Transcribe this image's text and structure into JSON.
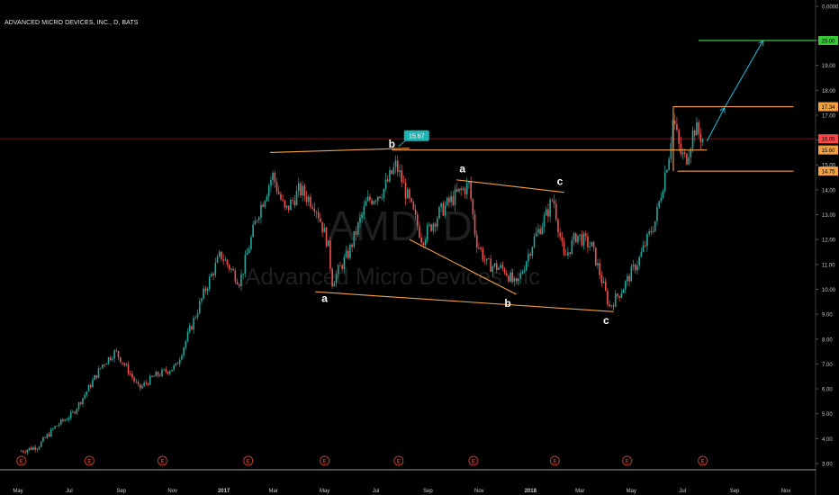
{
  "header": {
    "title": "ADVANCED MICRO DEVICES, INC., D, BATS"
  },
  "watermark": {
    "symbol": "AMD, D",
    "name": "Advanced Micro Devices Inc"
  },
  "chart_data": {
    "type": "candlestick",
    "title": "ADVANCED MICRO DEVICES, INC., D, BATS",
    "ylim": [
      2.7,
      21.5
    ],
    "yticks": [
      "0.0000",
      "20.00",
      "19.00",
      "18.00",
      "17.00",
      "16.00",
      "15.00",
      "14.00",
      "13.00",
      "12.00",
      "11.00",
      "10.00",
      "9.00",
      "8.00",
      "7.00",
      "6.00",
      "5.00",
      "4.00",
      "3.00"
    ],
    "xticks": [
      "May",
      "Jul",
      "Sep",
      "Nov",
      "2017",
      "Mar",
      "May",
      "Jul",
      "Sep",
      "Nov",
      "2018",
      "Mar",
      "May",
      "Jul",
      "Sep",
      "Nov"
    ],
    "price_path": [
      {
        "x": "2016-05-05",
        "y": 3.5
      },
      {
        "x": "2016-05-25",
        "y": 3.7
      },
      {
        "x": "2016-06-15",
        "y": 4.5
      },
      {
        "x": "2016-07-05",
        "y": 5.0
      },
      {
        "x": "2016-07-20",
        "y": 5.8
      },
      {
        "x": "2016-08-10",
        "y": 7.0
      },
      {
        "x": "2016-08-25",
        "y": 7.5
      },
      {
        "x": "2016-09-10",
        "y": 6.7
      },
      {
        "x": "2016-09-22",
        "y": 6.0
      },
      {
        "x": "2016-10-10",
        "y": 6.5
      },
      {
        "x": "2016-11-05",
        "y": 6.9
      },
      {
        "x": "2016-11-22",
        "y": 8.4
      },
      {
        "x": "2016-12-10",
        "y": 10.0
      },
      {
        "x": "2016-12-28",
        "y": 11.4
      },
      {
        "x": "2017-01-20",
        "y": 10.3
      },
      {
        "x": "2017-02-10",
        "y": 13.0
      },
      {
        "x": "2017-02-28",
        "y": 14.6
      },
      {
        "x": "2017-03-15",
        "y": 13.1
      },
      {
        "x": "2017-04-01",
        "y": 14.0
      },
      {
        "x": "2017-04-20",
        "y": 13.4
      },
      {
        "x": "2017-05-05",
        "y": 11.8
      },
      {
        "x": "2017-05-10",
        "y": 10.3
      },
      {
        "x": "2017-05-30",
        "y": 11.5
      },
      {
        "x": "2017-06-20",
        "y": 13.5
      },
      {
        "x": "2017-07-10",
        "y": 14.0
      },
      {
        "x": "2017-07-25",
        "y": 15.0
      },
      {
        "x": "2017-08-15",
        "y": 13.0
      },
      {
        "x": "2017-08-25",
        "y": 12.0
      },
      {
        "x": "2017-09-15",
        "y": 13.1
      },
      {
        "x": "2017-10-05",
        "y": 13.8
      },
      {
        "x": "2017-10-20",
        "y": 14.2
      },
      {
        "x": "2017-10-28",
        "y": 12.0
      },
      {
        "x": "2017-11-10",
        "y": 11.0
      },
      {
        "x": "2017-12-01",
        "y": 10.8
      },
      {
        "x": "2017-12-15",
        "y": 10.1
      },
      {
        "x": "2018-01-05",
        "y": 12.0
      },
      {
        "x": "2018-01-20",
        "y": 13.0
      },
      {
        "x": "2018-01-28",
        "y": 13.7
      },
      {
        "x": "2018-02-10",
        "y": 11.2
      },
      {
        "x": "2018-02-25",
        "y": 12.2
      },
      {
        "x": "2018-03-15",
        "y": 11.7
      },
      {
        "x": "2018-03-30",
        "y": 10.0
      },
      {
        "x": "2018-04-05",
        "y": 9.3
      },
      {
        "x": "2018-04-20",
        "y": 10.0
      },
      {
        "x": "2018-05-10",
        "y": 11.2
      },
      {
        "x": "2018-05-30",
        "y": 12.8
      },
      {
        "x": "2018-06-15",
        "y": 15.5
      },
      {
        "x": "2018-06-20",
        "y": 16.9
      },
      {
        "x": "2018-06-28",
        "y": 15.5
      },
      {
        "x": "2018-07-05",
        "y": 15.2
      },
      {
        "x": "2018-07-15",
        "y": 16.5
      },
      {
        "x": "2018-07-25",
        "y": 16.05
      }
    ],
    "price_labels": [
      {
        "label": "20.00",
        "y": 20.0,
        "color": "#3ac43a"
      },
      {
        "label": "17.34",
        "y": 17.34,
        "color": "#f5a040"
      },
      {
        "label": "16.05",
        "y": 16.05,
        "color": "#ff4646"
      },
      {
        "label": "15.60",
        "y": 15.6,
        "color": "#f5a040"
      },
      {
        "label": "14.75",
        "y": 14.75,
        "color": "#f5a040"
      }
    ],
    "annotations": [
      {
        "text": "b",
        "x": "2017-07-20",
        "y": 15.7
      },
      {
        "text": "a",
        "x": "2017-10-12",
        "y": 14.7
      },
      {
        "text": "c",
        "x": "2018-02-05",
        "y": 14.2
      },
      {
        "text": "a",
        "x": "2017-05-01",
        "y": 9.5
      },
      {
        "text": "b",
        "x": "2017-12-05",
        "y": 9.3
      },
      {
        "text": "c",
        "x": "2018-04-01",
        "y": 8.6
      }
    ],
    "callout": {
      "label": "15.67",
      "x": "2017-07-28",
      "y": 15.67
    },
    "event_markers": [
      "2016-05-05",
      "2016-07-25",
      "2016-10-20",
      "2017-01-30",
      "2017-05-01",
      "2017-07-28",
      "2017-10-25",
      "2018-01-30",
      "2018-04-26",
      "2018-07-25"
    ],
    "event_label": "E",
    "colors": {
      "up": "#26a69a",
      "down": "#ef5350",
      "trend": "#f5a040",
      "target": "#3ac43a",
      "arrow": "#19c3e0",
      "current": "#ff4646"
    }
  }
}
